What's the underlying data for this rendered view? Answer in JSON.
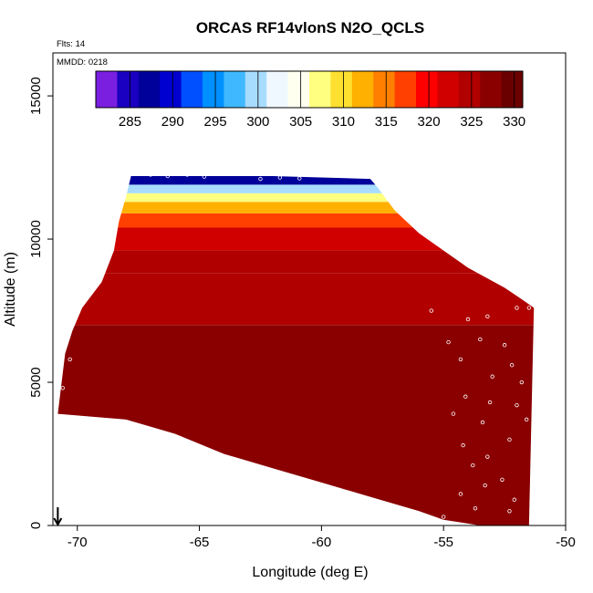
{
  "chart_data": {
    "type": "heatmap",
    "title": "ORCAS RF14vlonS N2O_QCLS",
    "subtitle_flts": "Flts: 14",
    "subtitle_mmdd": "MMDD: 0218",
    "xlabel": "Longitude (deg E)",
    "ylabel": "Altitude (m)",
    "xlim": [
      -71,
      -50
    ],
    "ylim": [
      0,
      16500
    ],
    "x_ticks": [
      -70,
      -65,
      -60,
      -55,
      -50
    ],
    "x_tick_labels": [
      "-70",
      "-65",
      "-60",
      "-55",
      "-50"
    ],
    "y_ticks": [
      0,
      5000,
      10000,
      15000
    ],
    "y_tick_labels": [
      "0",
      "5000",
      "10000",
      "15000"
    ],
    "colorbar": {
      "range": [
        281,
        331
      ],
      "ticks": [
        285,
        290,
        295,
        300,
        305,
        310,
        315,
        320,
        325,
        330
      ],
      "tick_labels": [
        "285",
        "290",
        "295",
        "300",
        "305",
        "310",
        "315",
        "320",
        "325",
        "330"
      ],
      "colors": [
        "#7a1fe0",
        "#1a00c0",
        "#00009a",
        "#0000d0",
        "#0050ff",
        "#0090ff",
        "#40b8ff",
        "#a8dcff",
        "#f0f8ff",
        "#fffff0",
        "#ffff80",
        "#ffe030",
        "#ffb000",
        "#ff8000",
        "#ff4000",
        "#ff0000",
        "#d00000",
        "#b00000",
        "#8a0000",
        "#6a0000"
      ]
    },
    "region": {
      "top_edge": [
        [
          -70.8,
          3900
        ],
        [
          -70.5,
          6000
        ],
        [
          -70.2,
          6800
        ],
        [
          -69.8,
          7600
        ],
        [
          -69.0,
          8500
        ],
        [
          -68.5,
          9600
        ],
        [
          -68.3,
          10600
        ],
        [
          -68.0,
          11500
        ],
        [
          -67.8,
          12200
        ],
        [
          -62.0,
          12200
        ],
        [
          -58.0,
          12100
        ],
        [
          -57.7,
          11800
        ],
        [
          -57.0,
          11000
        ],
        [
          -56.0,
          10200
        ],
        [
          -55.0,
          9600
        ],
        [
          -54.0,
          9000
        ],
        [
          -52.5,
          8300
        ],
        [
          -51.8,
          7900
        ],
        [
          -51.3,
          7600
        ]
      ],
      "bottom_edge": [
        [
          -70.8,
          3900
        ],
        [
          -68.0,
          3700
        ],
        [
          -66.0,
          3200
        ],
        [
          -64.0,
          2500
        ],
        [
          -62.0,
          2000
        ],
        [
          -60.0,
          1500
        ],
        [
          -58.0,
          1000
        ],
        [
          -56.0,
          500
        ],
        [
          -55.0,
          200
        ],
        [
          -53.5,
          0
        ],
        [
          -52.0,
          0
        ],
        [
          -51.5,
          0
        ]
      ],
      "layers": [
        {
          "alt_from": 0,
          "alt_to": 7000,
          "value": 326
        },
        {
          "alt_from": 7000,
          "alt_to": 8800,
          "value": 325
        },
        {
          "alt_from": 8800,
          "alt_to": 9600,
          "value": 324
        },
        {
          "alt_from": 9600,
          "alt_to": 10400,
          "value": 322
        },
        {
          "alt_from": 10400,
          "alt_to": 10900,
          "value": 318
        },
        {
          "alt_from": 10900,
          "alt_to": 11300,
          "value": 312
        },
        {
          "alt_from": 11300,
          "alt_to": 11600,
          "value": 306
        },
        {
          "alt_from": 11600,
          "alt_to": 11900,
          "value": 299
        },
        {
          "alt_from": 11900,
          "alt_to": 12300,
          "value": 288
        }
      ]
    },
    "marker_lon": -70.8,
    "obs_points": [
      [
        -70.6,
        4800
      ],
      [
        -70.3,
        5800
      ],
      [
        -55.5,
        7500
      ],
      [
        -54.0,
        7200
      ],
      [
        -53.2,
        7300
      ],
      [
        -52.0,
        7600
      ],
      [
        -51.5,
        7600
      ],
      [
        -54.8,
        6400
      ],
      [
        -53.5,
        6500
      ],
      [
        -52.5,
        6300
      ],
      [
        -54.3,
        5800
      ],
      [
        -53.0,
        5200
      ],
      [
        -52.2,
        5600
      ],
      [
        -54.1,
        4500
      ],
      [
        -53.1,
        4300
      ],
      [
        -52.0,
        4200
      ],
      [
        -54.6,
        3900
      ],
      [
        -53.4,
        3600
      ],
      [
        -52.3,
        3000
      ],
      [
        -54.2,
        2800
      ],
      [
        -53.2,
        2400
      ],
      [
        -52.6,
        1600
      ],
      [
        -53.3,
        1400
      ],
      [
        -52.1,
        900
      ],
      [
        -54.3,
        1100
      ],
      [
        -53.7,
        600
      ],
      [
        -55.0,
        300
      ],
      [
        -52.3,
        500
      ],
      [
        -53.8,
        2100
      ],
      [
        -51.6,
        3700
      ],
      [
        -51.8,
        5000
      ],
      [
        -67.0,
        12250
      ],
      [
        -66.3,
        12200
      ],
      [
        -65.5,
        12250
      ],
      [
        -64.8,
        12180
      ],
      [
        -62.5,
        12100
      ],
      [
        -61.7,
        12150
      ],
      [
        -60.9,
        12120
      ]
    ]
  }
}
